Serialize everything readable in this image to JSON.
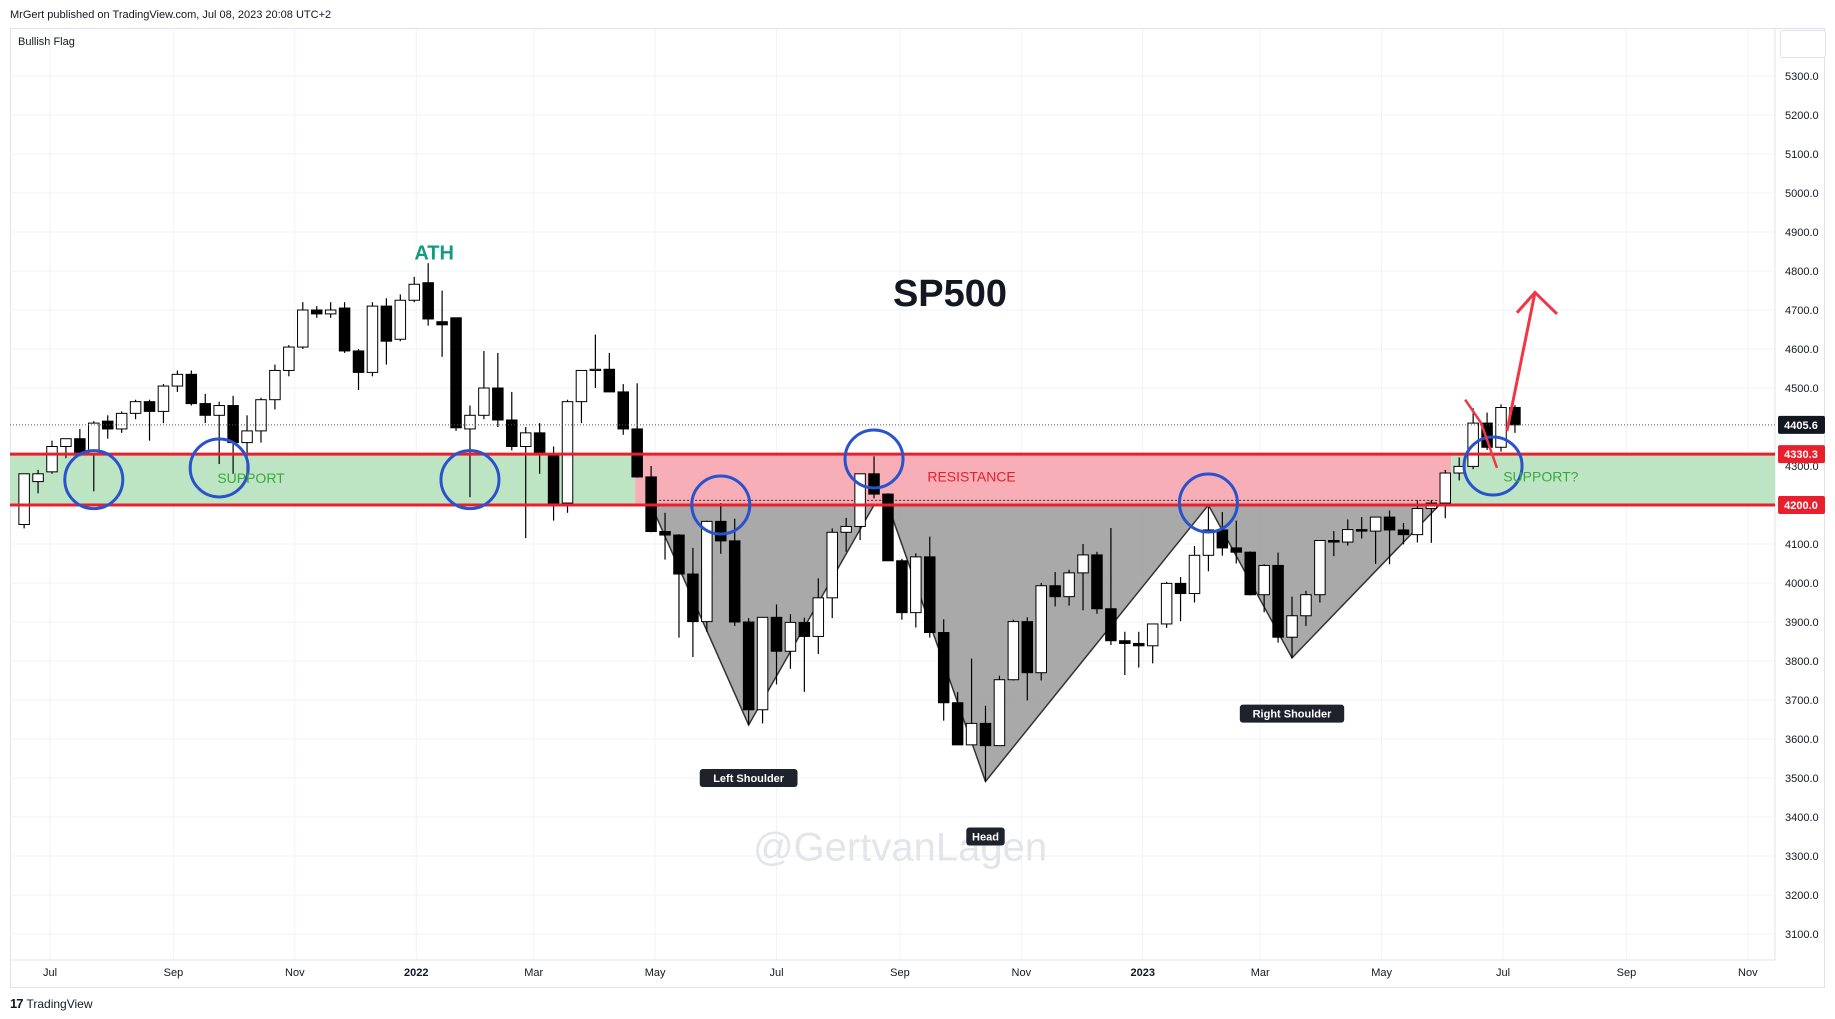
{
  "header": {
    "published": "MrGert published on TradingView.com, Jul 08, 2023 20:08 UTC+2",
    "symbol_label": "Bullish Flag"
  },
  "footer": {
    "logo": "17",
    "brand": "TradingView"
  },
  "colors": {
    "support_zone": "#bde5c3",
    "resistance_zone": "#f7aeb6",
    "level_line": "#e8202d",
    "circle": "#2952cc",
    "ath_text": "#119b80",
    "support_text": "#3aa83f",
    "resistance_text": "#e8202d",
    "pattern_fill": "#9a9a9a",
    "arrow": "#f23645"
  },
  "chart_data": {
    "type": "candlestick",
    "title": "SP500",
    "watermark": "@GertvanLagen",
    "ylim": [
      3050,
      5420
    ],
    "y_ticks": [
      3100,
      3200,
      3300,
      3400,
      3500,
      3600,
      3700,
      3800,
      3900,
      4000,
      4100,
      4200,
      4300,
      4400,
      4500,
      4600,
      4700,
      4800,
      4900,
      5000,
      5100,
      5200,
      5300
    ],
    "x_labels": [
      {
        "label": "Jul",
        "date": "2021-07-01"
      },
      {
        "label": "Sep",
        "date": "2021-09-01"
      },
      {
        "label": "Nov",
        "date": "2021-11-01"
      },
      {
        "label": "2022",
        "date": "2022-01-01",
        "bold": true
      },
      {
        "label": "Mar",
        "date": "2022-03-01"
      },
      {
        "label": "May",
        "date": "2022-05-01"
      },
      {
        "label": "Jul",
        "date": "2022-07-01"
      },
      {
        "label": "Sep",
        "date": "2022-09-01"
      },
      {
        "label": "Nov",
        "date": "2022-11-01"
      },
      {
        "label": "2023",
        "date": "2023-01-01",
        "bold": true
      },
      {
        "label": "Mar",
        "date": "2023-03-01"
      },
      {
        "label": "May",
        "date": "2023-05-01"
      },
      {
        "label": "Jul",
        "date": "2023-07-01"
      },
      {
        "label": "Sep",
        "date": "2023-09-01"
      },
      {
        "label": "Nov",
        "date": "2023-11-01"
      }
    ],
    "price_labels": [
      {
        "value": 4405.6,
        "text": "4405.6",
        "bg": "#131722"
      },
      {
        "value": 4330.3,
        "text": "4330.3",
        "bg": "#e8202d"
      },
      {
        "value": 4200.0,
        "text": "4200.0",
        "bg": "#e8202d"
      }
    ],
    "last_price": 4405.6,
    "support_zone": [
      4200,
      4330.3
    ],
    "annotations": {
      "ath": "ATH",
      "support": "SUPPORT",
      "resistance": "RESISTANCE",
      "support_q": "SUPPORT?",
      "left_shoulder": "Left Shoulder",
      "head": "Head",
      "right_shoulder": "Right Shoulder"
    },
    "candles": [
      {
        "d": "2021-06-18",
        "o": 4150,
        "h": 4270,
        "l": 4140,
        "c": 4280
      },
      {
        "d": "2021-06-25",
        "o": 4260,
        "h": 4290,
        "l": 4230,
        "c": 4280
      },
      {
        "d": "2021-07-02",
        "o": 4285,
        "h": 4365,
        "l": 4280,
        "c": 4350
      },
      {
        "d": "2021-07-09",
        "o": 4350,
        "h": 4370,
        "l": 4320,
        "c": 4370
      },
      {
        "d": "2021-07-16",
        "o": 4370,
        "h": 4395,
        "l": 4325,
        "c": 4330
      },
      {
        "d": "2021-07-23",
        "o": 4330,
        "h": 4415,
        "l": 4235,
        "c": 4410
      },
      {
        "d": "2021-07-30",
        "o": 4415,
        "h": 4430,
        "l": 4370,
        "c": 4395
      },
      {
        "d": "2021-08-06",
        "o": 4395,
        "h": 4440,
        "l": 4385,
        "c": 4435
      },
      {
        "d": "2021-08-13",
        "o": 4435,
        "h": 4470,
        "l": 4420,
        "c": 4465
      },
      {
        "d": "2021-08-20",
        "o": 4465,
        "h": 4470,
        "l": 4365,
        "c": 4440
      },
      {
        "d": "2021-08-27",
        "o": 4440,
        "h": 4510,
        "l": 4410,
        "c": 4505
      },
      {
        "d": "2021-09-03",
        "o": 4505,
        "h": 4545,
        "l": 4490,
        "c": 4535
      },
      {
        "d": "2021-09-10",
        "o": 4535,
        "h": 4545,
        "l": 4455,
        "c": 4460
      },
      {
        "d": "2021-09-17",
        "o": 4460,
        "h": 4485,
        "l": 4410,
        "c": 4430
      },
      {
        "d": "2021-09-24",
        "o": 4430,
        "h": 4465,
        "l": 4305,
        "c": 4455
      },
      {
        "d": "2021-10-01",
        "o": 4455,
        "h": 4480,
        "l": 4280,
        "c": 4360
      },
      {
        "d": "2021-10-08",
        "o": 4360,
        "h": 4430,
        "l": 4280,
        "c": 4390
      },
      {
        "d": "2021-10-15",
        "o": 4390,
        "h": 4475,
        "l": 4360,
        "c": 4470
      },
      {
        "d": "2021-10-22",
        "o": 4470,
        "h": 4560,
        "l": 4445,
        "c": 4545
      },
      {
        "d": "2021-10-29",
        "o": 4545,
        "h": 4610,
        "l": 4530,
        "c": 4605
      },
      {
        "d": "2021-11-05",
        "o": 4605,
        "h": 4720,
        "l": 4600,
        "c": 4700
      },
      {
        "d": "2021-11-12",
        "o": 4700,
        "h": 4710,
        "l": 4680,
        "c": 4690
      },
      {
        "d": "2021-11-19",
        "o": 4690,
        "h": 4720,
        "l": 4680,
        "c": 4700
      },
      {
        "d": "2021-11-26",
        "o": 4705,
        "h": 4720,
        "l": 4590,
        "c": 4595
      },
      {
        "d": "2021-12-03",
        "o": 4595,
        "h": 4600,
        "l": 4495,
        "c": 4540
      },
      {
        "d": "2021-12-10",
        "o": 4540,
        "h": 4720,
        "l": 4530,
        "c": 4710
      },
      {
        "d": "2021-12-17",
        "o": 4710,
        "h": 4730,
        "l": 4560,
        "c": 4620
      },
      {
        "d": "2021-12-24",
        "o": 4625,
        "h": 4740,
        "l": 4620,
        "c": 4725
      },
      {
        "d": "2021-12-31",
        "o": 4725,
        "h": 4785,
        "l": 4720,
        "c": 4766
      },
      {
        "d": "2022-01-07",
        "o": 4770,
        "h": 4820,
        "l": 4660,
        "c": 4677
      },
      {
        "d": "2022-01-14",
        "o": 4670,
        "h": 4750,
        "l": 4580,
        "c": 4662
      },
      {
        "d": "2022-01-21",
        "o": 4680,
        "h": 4680,
        "l": 4390,
        "c": 4398
      },
      {
        "d": "2022-01-28",
        "o": 4395,
        "h": 4455,
        "l": 4220,
        "c": 4430
      },
      {
        "d": "2022-02-04",
        "o": 4430,
        "h": 4595,
        "l": 4420,
        "c": 4500
      },
      {
        "d": "2022-02-11",
        "o": 4500,
        "h": 4590,
        "l": 4400,
        "c": 4418
      },
      {
        "d": "2022-02-18",
        "o": 4418,
        "h": 4490,
        "l": 4340,
        "c": 4350
      },
      {
        "d": "2022-02-25",
        "o": 4350,
        "h": 4400,
        "l": 4115,
        "c": 4385
      },
      {
        "d": "2022-03-04",
        "o": 4385,
        "h": 4410,
        "l": 4280,
        "c": 4330
      },
      {
        "d": "2022-03-11",
        "o": 4330,
        "h": 4350,
        "l": 4160,
        "c": 4205
      },
      {
        "d": "2022-03-18",
        "o": 4205,
        "h": 4470,
        "l": 4180,
        "c": 4465
      },
      {
        "d": "2022-03-25",
        "o": 4465,
        "h": 4525,
        "l": 4410,
        "c": 4545
      },
      {
        "d": "2022-04-01",
        "o": 4545,
        "h": 4637,
        "l": 4500,
        "c": 4548
      },
      {
        "d": "2022-04-08",
        "o": 4548,
        "h": 4590,
        "l": 4490,
        "c": 4490
      },
      {
        "d": "2022-04-15",
        "o": 4490,
        "h": 4510,
        "l": 4380,
        "c": 4395
      },
      {
        "d": "2022-04-22",
        "o": 4395,
        "h": 4512,
        "l": 4270,
        "c": 4272
      },
      {
        "d": "2022-04-29",
        "o": 4272,
        "h": 4300,
        "l": 4130,
        "c": 4132
      },
      {
        "d": "2022-05-06",
        "o": 4132,
        "h": 4180,
        "l": 4060,
        "c": 4123
      },
      {
        "d": "2022-05-13",
        "o": 4123,
        "h": 4125,
        "l": 3860,
        "c": 4023
      },
      {
        "d": "2022-05-20",
        "o": 4023,
        "h": 4090,
        "l": 3810,
        "c": 3901
      },
      {
        "d": "2022-05-27",
        "o": 3901,
        "h": 4160,
        "l": 3875,
        "c": 4158
      },
      {
        "d": "2022-06-03",
        "o": 4158,
        "h": 4205,
        "l": 4075,
        "c": 4108
      },
      {
        "d": "2022-06-10",
        "o": 4108,
        "h": 4165,
        "l": 3890,
        "c": 3900
      },
      {
        "d": "2022-06-17",
        "o": 3900,
        "h": 3910,
        "l": 3636,
        "c": 3675
      },
      {
        "d": "2022-06-24",
        "o": 3675,
        "h": 3912,
        "l": 3640,
        "c": 3912
      },
      {
        "d": "2022-07-01",
        "o": 3912,
        "h": 3945,
        "l": 3740,
        "c": 3825
      },
      {
        "d": "2022-07-08",
        "o": 3825,
        "h": 3920,
        "l": 3780,
        "c": 3899
      },
      {
        "d": "2022-07-15",
        "o": 3899,
        "h": 3911,
        "l": 3721,
        "c": 3863
      },
      {
        "d": "2022-07-22",
        "o": 3863,
        "h": 4012,
        "l": 3818,
        "c": 3962
      },
      {
        "d": "2022-07-29",
        "o": 3962,
        "h": 4140,
        "l": 3910,
        "c": 4130
      },
      {
        "d": "2022-08-05",
        "o": 4130,
        "h": 4167,
        "l": 4080,
        "c": 4145
      },
      {
        "d": "2022-08-12",
        "o": 4145,
        "h": 4280,
        "l": 4110,
        "c": 4280
      },
      {
        "d": "2022-08-19",
        "o": 4280,
        "h": 4325,
        "l": 4217,
        "c": 4228
      },
      {
        "d": "2022-08-26",
        "o": 4228,
        "h": 4230,
        "l": 4057,
        "c": 4057
      },
      {
        "d": "2022-09-02",
        "o": 4057,
        "h": 4062,
        "l": 3906,
        "c": 3924
      },
      {
        "d": "2022-09-09",
        "o": 3924,
        "h": 4076,
        "l": 3886,
        "c": 4067
      },
      {
        "d": "2022-09-16",
        "o": 4067,
        "h": 4119,
        "l": 3860,
        "c": 3873
      },
      {
        "d": "2022-09-23",
        "o": 3873,
        "h": 3907,
        "l": 3647,
        "c": 3693
      },
      {
        "d": "2022-09-30",
        "o": 3693,
        "h": 3720,
        "l": 3584,
        "c": 3585
      },
      {
        "d": "2022-10-07",
        "o": 3585,
        "h": 3806,
        "l": 3584,
        "c": 3640
      },
      {
        "d": "2022-10-14",
        "o": 3640,
        "h": 3685,
        "l": 3491,
        "c": 3583
      },
      {
        "d": "2022-10-21",
        "o": 3583,
        "h": 3762,
        "l": 3583,
        "c": 3752
      },
      {
        "d": "2022-10-28",
        "o": 3752,
        "h": 3906,
        "l": 3750,
        "c": 3901
      },
      {
        "d": "2022-11-04",
        "o": 3901,
        "h": 3912,
        "l": 3699,
        "c": 3770
      },
      {
        "d": "2022-11-11",
        "o": 3770,
        "h": 4000,
        "l": 3750,
        "c": 3993
      },
      {
        "d": "2022-11-18",
        "o": 3993,
        "h": 4028,
        "l": 3940,
        "c": 3965
      },
      {
        "d": "2022-11-25",
        "o": 3965,
        "h": 4034,
        "l": 3942,
        "c": 4026
      },
      {
        "d": "2022-12-02",
        "o": 4026,
        "h": 4100,
        "l": 3930,
        "c": 4072
      },
      {
        "d": "2022-12-09",
        "o": 4072,
        "h": 4080,
        "l": 3921,
        "c": 3934
      },
      {
        "d": "2022-12-16",
        "o": 3934,
        "h": 4141,
        "l": 3841,
        "c": 3852
      },
      {
        "d": "2022-12-23",
        "o": 3852,
        "h": 3875,
        "l": 3764,
        "c": 3845
      },
      {
        "d": "2022-12-30",
        "o": 3845,
        "h": 3875,
        "l": 3783,
        "c": 3839
      },
      {
        "d": "2023-01-06",
        "o": 3839,
        "h": 3896,
        "l": 3794,
        "c": 3895
      },
      {
        "d": "2023-01-13",
        "o": 3895,
        "h": 4003,
        "l": 3885,
        "c": 3999
      },
      {
        "d": "2023-01-20",
        "o": 3999,
        "h": 4015,
        "l": 3902,
        "c": 3973
      },
      {
        "d": "2023-01-27",
        "o": 3973,
        "h": 4095,
        "l": 3950,
        "c": 4071
      },
      {
        "d": "2023-02-03",
        "o": 4071,
        "h": 4195,
        "l": 4030,
        "c": 4136
      },
      {
        "d": "2023-02-10",
        "o": 4136,
        "h": 4182,
        "l": 4070,
        "c": 4090
      },
      {
        "d": "2023-02-17",
        "o": 4090,
        "h": 4160,
        "l": 4050,
        "c": 4079
      },
      {
        "d": "2023-02-24",
        "o": 4079,
        "h": 4081,
        "l": 3968,
        "c": 3970
      },
      {
        "d": "2023-03-03",
        "o": 3970,
        "h": 4048,
        "l": 3925,
        "c": 4045
      },
      {
        "d": "2023-03-10",
        "o": 4045,
        "h": 4078,
        "l": 3847,
        "c": 3861
      },
      {
        "d": "2023-03-17",
        "o": 3861,
        "h": 3965,
        "l": 3808,
        "c": 3916
      },
      {
        "d": "2023-03-24",
        "o": 3916,
        "h": 3980,
        "l": 3890,
        "c": 3970
      },
      {
        "d": "2023-03-31",
        "o": 3970,
        "h": 4110,
        "l": 3950,
        "c": 4109
      },
      {
        "d": "2023-04-07",
        "o": 4109,
        "h": 4133,
        "l": 4069,
        "c": 4105
      },
      {
        "d": "2023-04-14",
        "o": 4105,
        "h": 4163,
        "l": 4096,
        "c": 4137
      },
      {
        "d": "2023-04-21",
        "o": 4137,
        "h": 4169,
        "l": 4114,
        "c": 4133
      },
      {
        "d": "2023-04-28",
        "o": 4133,
        "h": 4170,
        "l": 4049,
        "c": 4169
      },
      {
        "d": "2023-05-05",
        "o": 4169,
        "h": 4186,
        "l": 4048,
        "c": 4136
      },
      {
        "d": "2023-05-12",
        "o": 4136,
        "h": 4154,
        "l": 4099,
        "c": 4124
      },
      {
        "d": "2023-05-19",
        "o": 4124,
        "h": 4212,
        "l": 4104,
        "c": 4191
      },
      {
        "d": "2023-05-26",
        "o": 4191,
        "h": 4212,
        "l": 4103,
        "c": 4205
      },
      {
        "d": "2023-06-02",
        "o": 4205,
        "h": 4290,
        "l": 4166,
        "c": 4282
      },
      {
        "d": "2023-06-09",
        "o": 4282,
        "h": 4322,
        "l": 4263,
        "c": 4299
      },
      {
        "d": "2023-06-16",
        "o": 4299,
        "h": 4448,
        "l": 4292,
        "c": 4410
      },
      {
        "d": "2023-06-23",
        "o": 4410,
        "h": 4437,
        "l": 4341,
        "c": 4348
      },
      {
        "d": "2023-06-30",
        "o": 4348,
        "h": 4458,
        "l": 4337,
        "c": 4450
      },
      {
        "d": "2023-07-07",
        "o": 4450,
        "h": 4456,
        "l": 4385,
        "c": 4405.6
      }
    ]
  }
}
